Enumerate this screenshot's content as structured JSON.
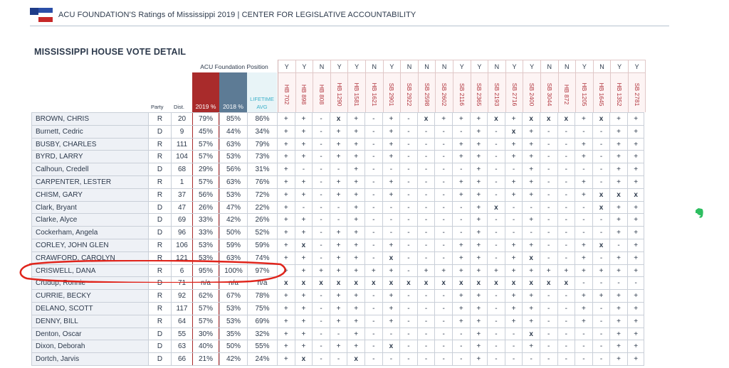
{
  "header": {
    "title": "ACU FOUNDATION'S Ratings of Mississippi 2019  | CENTER FOR LEGISLATIVE ACCOUNTABILITY"
  },
  "section_title": "MISSISSIPPI HOUSE VOTE DETAIL",
  "position_label": "ACU Foundation Position",
  "score_headers": {
    "y2019": "2019 %",
    "y2018": "2018 %",
    "lifetime": "LIFETIME AVG"
  },
  "col_party": "Party",
  "col_dist": "Dist.",
  "positions": [
    "Y",
    "Y",
    "N",
    "Y",
    "Y",
    "N",
    "Y",
    "N",
    "N",
    "N",
    "Y",
    "Y",
    "N",
    "Y",
    "Y",
    "N",
    "N",
    "Y",
    "N",
    "Y",
    "Y"
  ],
  "bills": [
    "HB 702",
    "HB 898",
    "HB 808",
    "HB 1290",
    "HB 1581",
    "HB 1621",
    "SB 2901",
    "SB 2922",
    "SB 2598",
    "SB 2602",
    "SB 2116",
    "SB 2365",
    "SB 2193",
    "SB 2716",
    "SB 2400",
    "SB 3044",
    "HB 872",
    "HB 1205",
    "HB 1645",
    "HB 1352",
    "SB 2781"
  ],
  "legislators": [
    {
      "name": "BROWN, CHRIS",
      "party": "R",
      "dist": "20",
      "s2019": "79%",
      "s2018": "85%",
      "life": "86%",
      "votes": [
        "+",
        "+",
        "-",
        "x",
        "+",
        "-",
        "+",
        "-",
        "x",
        "+",
        "+",
        "+",
        "x",
        "+",
        "x",
        "x",
        "x",
        "+",
        "x",
        "+",
        "+"
      ]
    },
    {
      "name": "Burnett, Cedric",
      "party": "D",
      "dist": "9",
      "s2019": "45%",
      "s2018": "44%",
      "life": "34%",
      "votes": [
        "+",
        "+",
        "-",
        "+",
        "+",
        "-",
        "+",
        "-",
        "-",
        "-",
        "-",
        "+",
        "-",
        "x",
        "+",
        "-",
        "-",
        "-",
        "-",
        "+",
        "+"
      ]
    },
    {
      "name": "BUSBY, CHARLES",
      "party": "R",
      "dist": "111",
      "s2019": "57%",
      "s2018": "63%",
      "life": "79%",
      "votes": [
        "+",
        "+",
        "-",
        "+",
        "+",
        "-",
        "+",
        "-",
        "-",
        "-",
        "+",
        "+",
        "-",
        "+",
        "+",
        "-",
        "-",
        "+",
        "-",
        "+",
        "+"
      ]
    },
    {
      "name": "BYRD, LARRY",
      "party": "R",
      "dist": "104",
      "s2019": "57%",
      "s2018": "53%",
      "life": "73%",
      "votes": [
        "+",
        "+",
        "-",
        "+",
        "+",
        "-",
        "+",
        "-",
        "-",
        "-",
        "+",
        "+",
        "-",
        "+",
        "+",
        "-",
        "-",
        "+",
        "-",
        "+",
        "+"
      ]
    },
    {
      "name": "Calhoun, Credell",
      "party": "D",
      "dist": "68",
      "s2019": "29%",
      "s2018": "56%",
      "life": "31%",
      "votes": [
        "+",
        "-",
        "-",
        "-",
        "+",
        "-",
        "-",
        "-",
        "-",
        "-",
        "-",
        "+",
        "-",
        "-",
        "+",
        "-",
        "-",
        "-",
        "-",
        "+",
        "+"
      ]
    },
    {
      "name": "CARPENTER, LESTER",
      "party": "R",
      "dist": "1",
      "s2019": "57%",
      "s2018": "63%",
      "life": "76%",
      "votes": [
        "+",
        "+",
        "-",
        "+",
        "+",
        "-",
        "+",
        "-",
        "-",
        "-",
        "+",
        "+",
        "-",
        "+",
        "+",
        "-",
        "-",
        "+",
        "-",
        "+",
        "+"
      ]
    },
    {
      "name": "CHISM, GARY",
      "party": "R",
      "dist": "37",
      "s2019": "56%",
      "s2018": "53%",
      "life": "72%",
      "votes": [
        "+",
        "+",
        "-",
        "+",
        "+",
        "-",
        "+",
        "-",
        "-",
        "-",
        "+",
        "+",
        "-",
        "+",
        "+",
        "-",
        "-",
        "+",
        "x",
        "x",
        "x"
      ]
    },
    {
      "name": "Clark, Bryant",
      "party": "D",
      "dist": "47",
      "s2019": "26%",
      "s2018": "47%",
      "life": "22%",
      "votes": [
        "+",
        "-",
        "-",
        "-",
        "+",
        "-",
        "-",
        "-",
        "-",
        "-",
        "-",
        "+",
        "x",
        "-",
        "-",
        "-",
        "-",
        "-",
        "x",
        "+",
        "+"
      ]
    },
    {
      "name": "Clarke, Alyce",
      "party": "D",
      "dist": "69",
      "s2019": "33%",
      "s2018": "42%",
      "life": "26%",
      "votes": [
        "+",
        "+",
        "-",
        "-",
        "+",
        "-",
        "-",
        "-",
        "-",
        "-",
        "-",
        "+",
        "-",
        "-",
        "+",
        "-",
        "-",
        "-",
        "-",
        "+",
        "+"
      ]
    },
    {
      "name": "Cockerham, Angela",
      "party": "D",
      "dist": "96",
      "s2019": "33%",
      "s2018": "50%",
      "life": "52%",
      "votes": [
        "+",
        "+",
        "-",
        "+",
        "+",
        "-",
        "-",
        "-",
        "-",
        "-",
        "-",
        "+",
        "-",
        "-",
        "-",
        "-",
        "-",
        "-",
        "-",
        "+",
        "+"
      ]
    },
    {
      "name": "CORLEY, JOHN GLEN",
      "party": "R",
      "dist": "106",
      "s2019": "53%",
      "s2018": "59%",
      "life": "59%",
      "votes": [
        "+",
        "x",
        "-",
        "+",
        "+",
        "-",
        "+",
        "-",
        "-",
        "-",
        "+",
        "+",
        "-",
        "+",
        "+",
        "-",
        "-",
        "+",
        "x",
        "-",
        "+"
      ]
    },
    {
      "name": "CRAWFORD, CAROLYN",
      "party": "R",
      "dist": "121",
      "s2019": "53%",
      "s2018": "63%",
      "life": "74%",
      "votes": [
        "+",
        "+",
        "-",
        "+",
        "+",
        "-",
        "x",
        "-",
        "-",
        "-",
        "+",
        "+",
        "-",
        "+",
        "x",
        "-",
        "-",
        "+",
        "-",
        "+",
        "+"
      ]
    },
    {
      "name": "CRISWELL, DANA",
      "party": "R",
      "dist": "6",
      "s2019": "95%",
      "s2018": "100%",
      "life": "97%",
      "votes": [
        "+",
        "+",
        "+",
        "+",
        "+",
        "+",
        "+",
        "-",
        "+",
        "+",
        "+",
        "+",
        "+",
        "+",
        "+",
        "+",
        "+",
        "+",
        "+",
        "+",
        "+"
      ]
    },
    {
      "name": "Crudup, Ronnie",
      "party": "D",
      "dist": "71",
      "s2019": "n/a",
      "s2018": "n/a",
      "life": "n/a",
      "votes": [
        "x",
        "x",
        "x",
        "x",
        "x",
        "x",
        "x",
        "x",
        "x",
        "x",
        "x",
        "x",
        "x",
        "x",
        "x",
        "x",
        "x",
        "-",
        "-",
        "-",
        "-"
      ]
    },
    {
      "name": "CURRIE, BECKY",
      "party": "R",
      "dist": "92",
      "s2019": "62%",
      "s2018": "67%",
      "life": "78%",
      "votes": [
        "+",
        "+",
        "-",
        "+",
        "+",
        "-",
        "+",
        "-",
        "-",
        "-",
        "+",
        "+",
        "-",
        "+",
        "+",
        "-",
        "-",
        "+",
        "+",
        "+",
        "+"
      ]
    },
    {
      "name": "DELANO, SCOTT",
      "party": "R",
      "dist": "117",
      "s2019": "57%",
      "s2018": "53%",
      "life": "75%",
      "votes": [
        "+",
        "+",
        "-",
        "+",
        "+",
        "-",
        "+",
        "-",
        "-",
        "-",
        "+",
        "+",
        "-",
        "+",
        "+",
        "-",
        "-",
        "+",
        "-",
        "+",
        "+"
      ]
    },
    {
      "name": "DENNY, BILL",
      "party": "R",
      "dist": "64",
      "s2019": "57%",
      "s2018": "53%",
      "life": "69%",
      "votes": [
        "+",
        "+",
        "-",
        "+",
        "+",
        "-",
        "+",
        "-",
        "-",
        "-",
        "+",
        "+",
        "-",
        "+",
        "+",
        "-",
        "-",
        "+",
        "-",
        "+",
        "+"
      ]
    },
    {
      "name": "Denton, Oscar",
      "party": "D",
      "dist": "55",
      "s2019": "30%",
      "s2018": "35%",
      "life": "32%",
      "votes": [
        "+",
        "+",
        "-",
        "-",
        "+",
        "-",
        "-",
        "-",
        "-",
        "-",
        "-",
        "+",
        "-",
        "-",
        "x",
        "-",
        "-",
        "-",
        "-",
        "+",
        "+"
      ]
    },
    {
      "name": "Dixon, Deborah",
      "party": "D",
      "dist": "63",
      "s2019": "40%",
      "s2018": "50%",
      "life": "55%",
      "votes": [
        "+",
        "+",
        "-",
        "+",
        "+",
        "-",
        "x",
        "-",
        "-",
        "-",
        "-",
        "+",
        "-",
        "-",
        "+",
        "-",
        "-",
        "-",
        "-",
        "+",
        "+"
      ]
    },
    {
      "name": "Dortch, Jarvis",
      "party": "D",
      "dist": "66",
      "s2019": "21%",
      "s2018": "42%",
      "life": "24%",
      "votes": [
        "+",
        "x",
        "-",
        "-",
        "x",
        "-",
        "-",
        "-",
        "-",
        "-",
        "-",
        "+",
        "-",
        "-",
        "-",
        "-",
        "-",
        "-",
        "-",
        "+",
        "+"
      ]
    }
  ],
  "colors": {
    "accent_red": "#a92b2b",
    "slate": "#5d7b95",
    "teal": "#3cb0c9",
    "annotation": "#e0251c",
    "evernote": "#2dbe60"
  },
  "icons": {
    "flag": "mississippi-flag-icon",
    "evernote": "evernote-icon"
  }
}
